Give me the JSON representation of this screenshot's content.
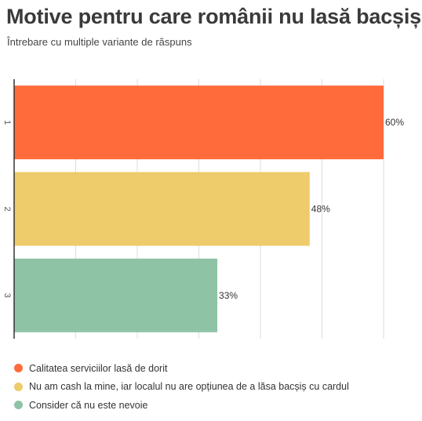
{
  "title": "Motive pentru care românii nu lasă bacșiș",
  "subtitle": "Întrebare cu multiple variante de răspuns",
  "chart_data": {
    "type": "bar",
    "orientation": "horizontal",
    "categories": [
      "1",
      "2",
      "3"
    ],
    "values": [
      60,
      48,
      33
    ],
    "value_labels": [
      "60%",
      "48%",
      "33%"
    ],
    "xlim": [
      0,
      60
    ],
    "grid": true,
    "legend_position": "bottom",
    "series": [
      {
        "name": "Calitatea serviciilor lasă de dorit",
        "value": 60,
        "color": "#ff6b3a"
      },
      {
        "name": "Nu am cash la mine, iar localul nu are opțiunea de a lăsa bacșiș cu cardul",
        "value": 48,
        "color": "#eecb6b"
      },
      {
        "name": "Consider că nu este nevoie",
        "value": 33,
        "color": "#8fc3a6"
      }
    ]
  }
}
